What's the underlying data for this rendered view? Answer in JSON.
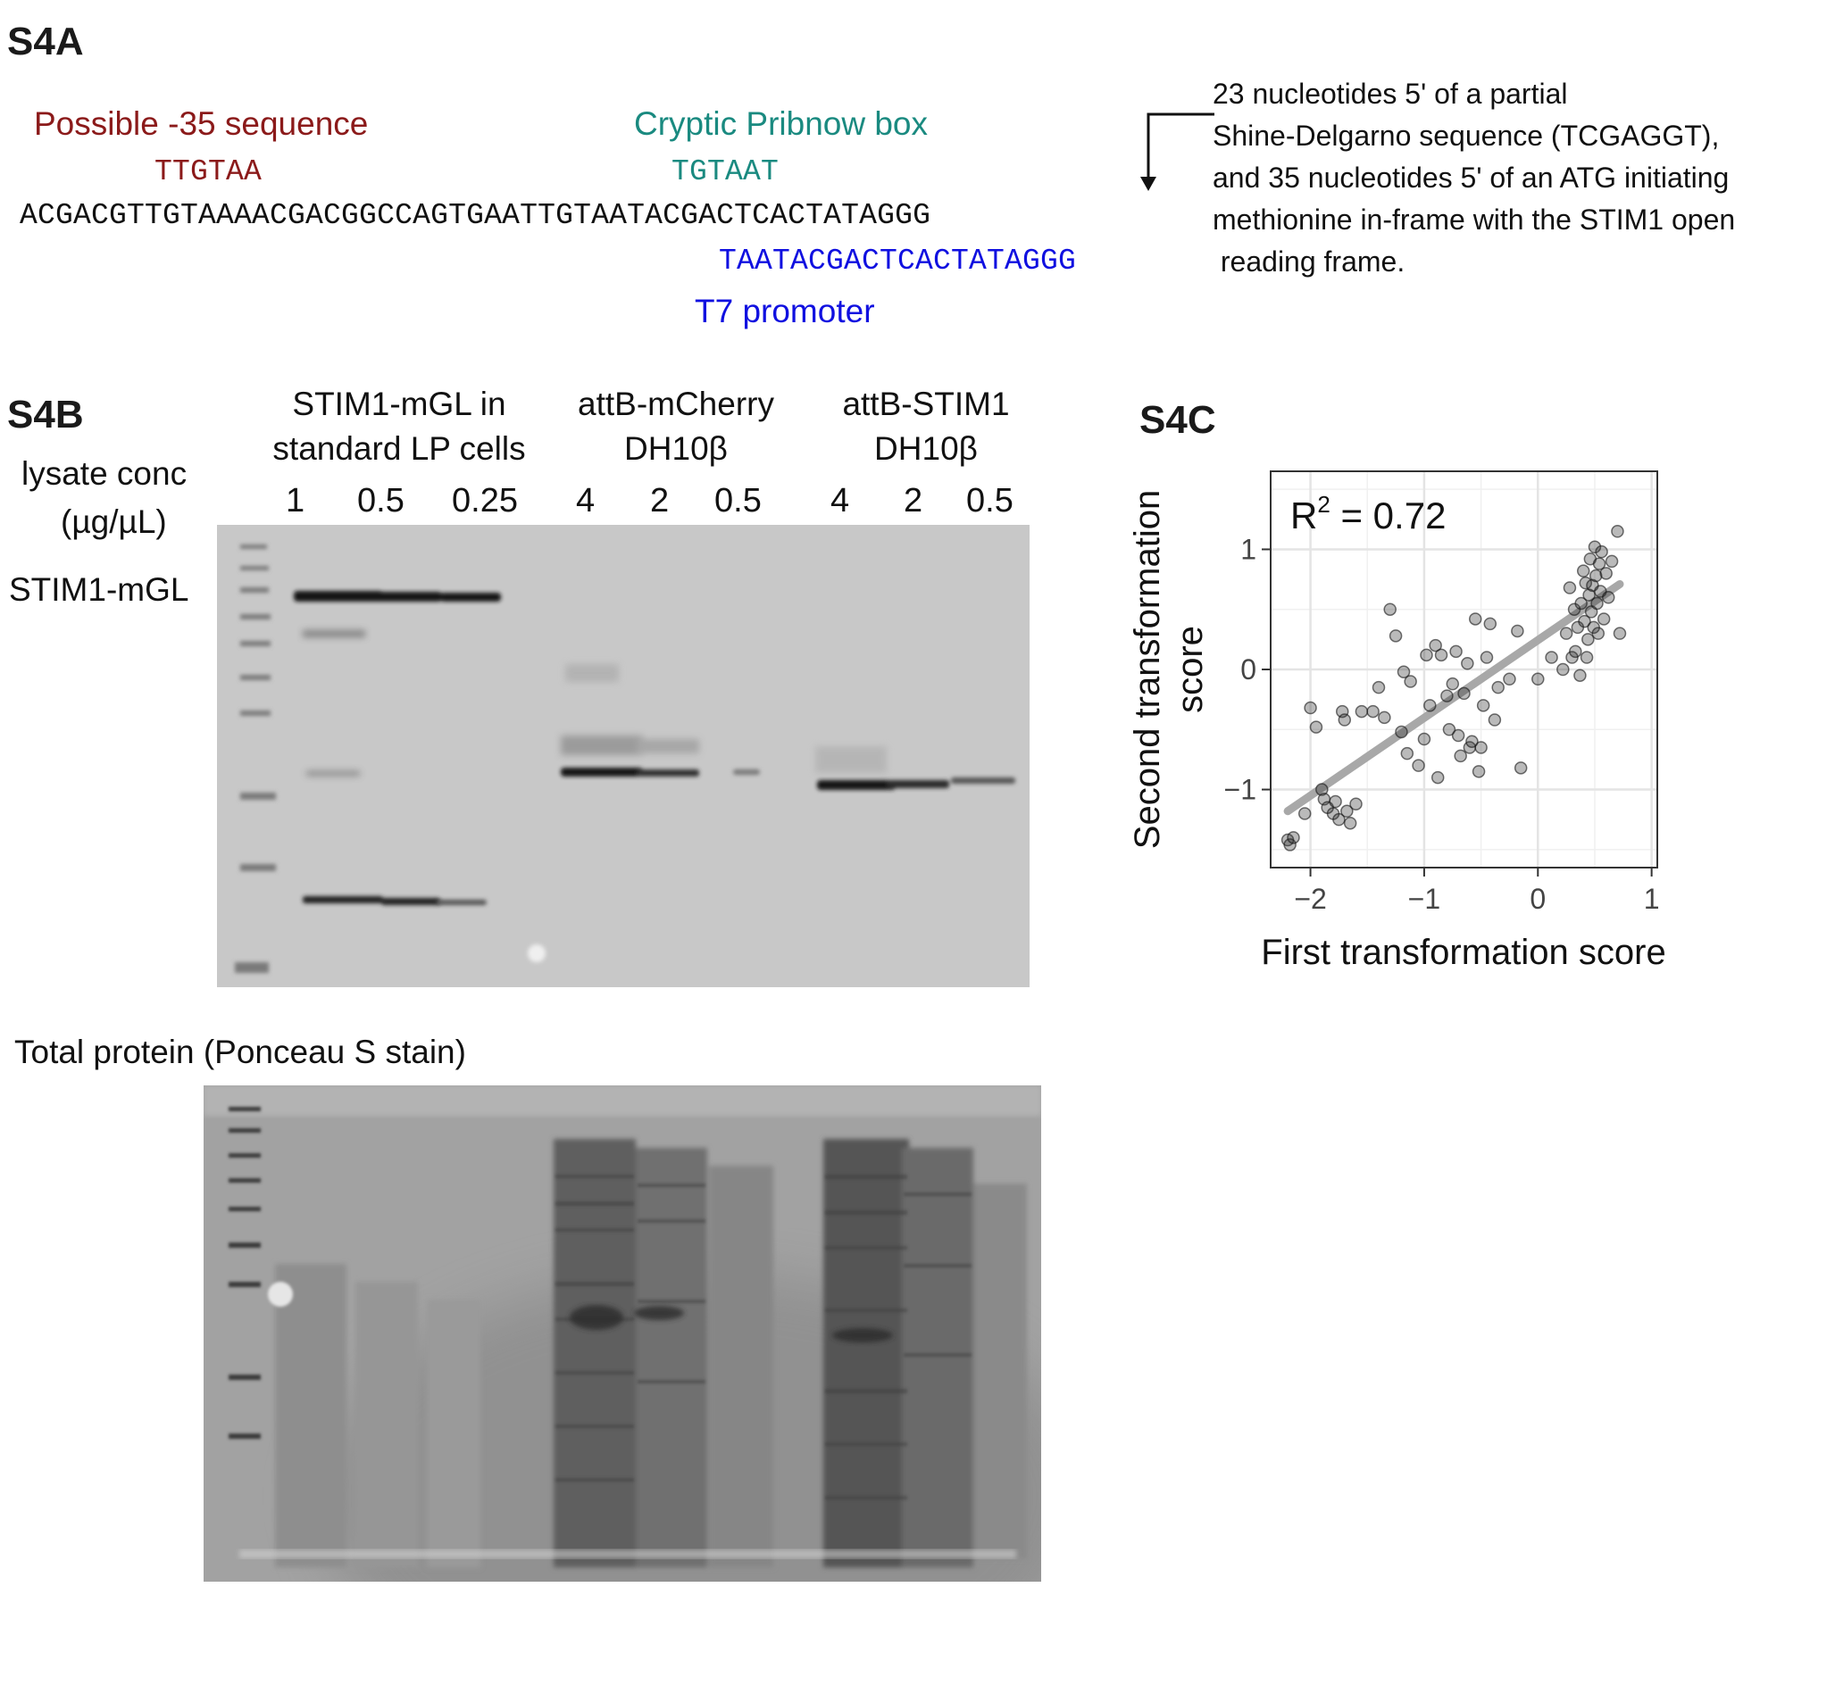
{
  "panelA": {
    "label": "S4A",
    "minus35_label": "Possible -35 sequence",
    "minus35_seq": "TTGTAA",
    "pribnow_label": "Cryptic Pribnow box",
    "pribnow_seq": "TGTAAT",
    "sequence": "ACGACGTTGTAAAACGACGGCCAGTGAATTGTAATACGACTCACTATAGGG",
    "t7_seq": "TAATACGACTCACTATAGGG",
    "t7_label": "T7 promoter",
    "note_lines": [
      "23 nucleotides 5' of a partial",
      "Shine-Delgarno sequence (TCGAGGT),",
      "and 35 nucleotides 5' of an ATG initiating",
      "methionine in-frame with the STIM1 open",
      " reading frame."
    ],
    "colors": {
      "minus35": "#8b1a1a",
      "pribnow": "#1a8a80",
      "t7": "#1010e0"
    }
  },
  "panelB": {
    "label": "S4B",
    "lysate_label_line1": "lysate conc",
    "lysate_label_line2": "(µg/µL)",
    "band_label": "STIM1-mGL",
    "groups": [
      {
        "line1": "STIM1-mGL in",
        "line2": "standard LP cells",
        "concs": [
          "1",
          "0.5",
          "0.25"
        ]
      },
      {
        "line1": "attB-mCherry",
        "line2": "DH10β",
        "concs": [
          "4",
          "2",
          "0.5"
        ]
      },
      {
        "line1": "attB-STIM1",
        "line2": "DH10β",
        "concs": [
          "4",
          "2",
          "0.5"
        ]
      }
    ],
    "ponceau_label": "Total protein (Ponceau S stain)"
  },
  "panelC": {
    "label": "S4C",
    "r2_main": "R",
    "r2_sup": "2",
    "r2_value": " = 0.72",
    "chart_data": {
      "type": "scatter",
      "xlabel": "First transformation score",
      "ylabel_line1": "Second transformation",
      "ylabel_line2": "score",
      "xlim": [
        -2.35,
        1.05
      ],
      "ylim": [
        -1.65,
        1.65
      ],
      "xticks": [
        "−2",
        "−1",
        "0",
        "1"
      ],
      "yticks": [
        "−1",
        "0",
        "1"
      ],
      "fit_line": {
        "x": [
          -2.2,
          0.72
        ],
        "y": [
          -1.18,
          0.71
        ]
      },
      "points": [
        [
          -2.2,
          -1.42
        ],
        [
          -2.18,
          -1.46
        ],
        [
          -2.15,
          -1.4
        ],
        [
          -2.05,
          -1.2
        ],
        [
          -2.0,
          -0.32
        ],
        [
          -1.95,
          -0.48
        ],
        [
          -1.9,
          -1.0
        ],
        [
          -1.88,
          -1.08
        ],
        [
          -1.85,
          -1.15
        ],
        [
          -1.8,
          -1.2
        ],
        [
          -1.78,
          -1.1
        ],
        [
          -1.75,
          -1.25
        ],
        [
          -1.72,
          -0.35
        ],
        [
          -1.7,
          -0.42
        ],
        [
          -1.68,
          -1.18
        ],
        [
          -1.65,
          -1.28
        ],
        [
          -1.6,
          -1.12
        ],
        [
          -1.55,
          -0.35
        ],
        [
          -1.45,
          -0.35
        ],
        [
          -1.4,
          -0.15
        ],
        [
          -1.35,
          -0.4
        ],
        [
          -1.3,
          0.5
        ],
        [
          -1.25,
          0.28
        ],
        [
          -1.2,
          -0.52
        ],
        [
          -1.18,
          -0.02
        ],
        [
          -1.15,
          -0.7
        ],
        [
          -1.12,
          -0.1
        ],
        [
          -1.05,
          -0.8
        ],
        [
          -1.0,
          -0.58
        ],
        [
          -0.98,
          0.12
        ],
        [
          -0.95,
          -0.3
        ],
        [
          -0.9,
          0.2
        ],
        [
          -0.88,
          -0.9
        ],
        [
          -0.85,
          0.12
        ],
        [
          -0.8,
          -0.22
        ],
        [
          -0.78,
          -0.5
        ],
        [
          -0.75,
          -0.12
        ],
        [
          -0.72,
          0.15
        ],
        [
          -0.7,
          -0.55
        ],
        [
          -0.68,
          -0.72
        ],
        [
          -0.65,
          -0.2
        ],
        [
          -0.62,
          0.05
        ],
        [
          -0.6,
          -0.65
        ],
        [
          -0.58,
          -0.6
        ],
        [
          -0.55,
          0.42
        ],
        [
          -0.52,
          -0.85
        ],
        [
          -0.5,
          -0.65
        ],
        [
          -0.48,
          -0.3
        ],
        [
          -0.45,
          0.1
        ],
        [
          -0.42,
          0.38
        ],
        [
          -0.38,
          -0.42
        ],
        [
          -0.35,
          -0.15
        ],
        [
          -0.25,
          -0.08
        ],
        [
          -0.18,
          0.32
        ],
        [
          -0.15,
          -0.82
        ],
        [
          0.0,
          -0.08
        ],
        [
          0.12,
          0.1
        ],
        [
          0.22,
          0.0
        ],
        [
          0.25,
          0.3
        ],
        [
          0.28,
          0.68
        ],
        [
          0.3,
          0.1
        ],
        [
          0.32,
          0.5
        ],
        [
          0.33,
          0.15
        ],
        [
          0.35,
          0.35
        ],
        [
          0.37,
          -0.05
        ],
        [
          0.38,
          0.55
        ],
        [
          0.4,
          0.82
        ],
        [
          0.41,
          0.4
        ],
        [
          0.42,
          0.72
        ],
        [
          0.43,
          0.1
        ],
        [
          0.44,
          0.25
        ],
        [
          0.45,
          0.62
        ],
        [
          0.46,
          0.92
        ],
        [
          0.47,
          0.48
        ],
        [
          0.48,
          0.7
        ],
        [
          0.49,
          0.35
        ],
        [
          0.5,
          1.02
        ],
        [
          0.51,
          0.78
        ],
        [
          0.52,
          0.55
        ],
        [
          0.53,
          0.3
        ],
        [
          0.54,
          0.88
        ],
        [
          0.55,
          0.65
        ],
        [
          0.56,
          0.98
        ],
        [
          0.58,
          0.42
        ],
        [
          0.6,
          0.8
        ],
        [
          0.62,
          0.6
        ],
        [
          0.65,
          0.9
        ],
        [
          0.7,
          1.15
        ],
        [
          0.72,
          0.3
        ]
      ]
    }
  }
}
